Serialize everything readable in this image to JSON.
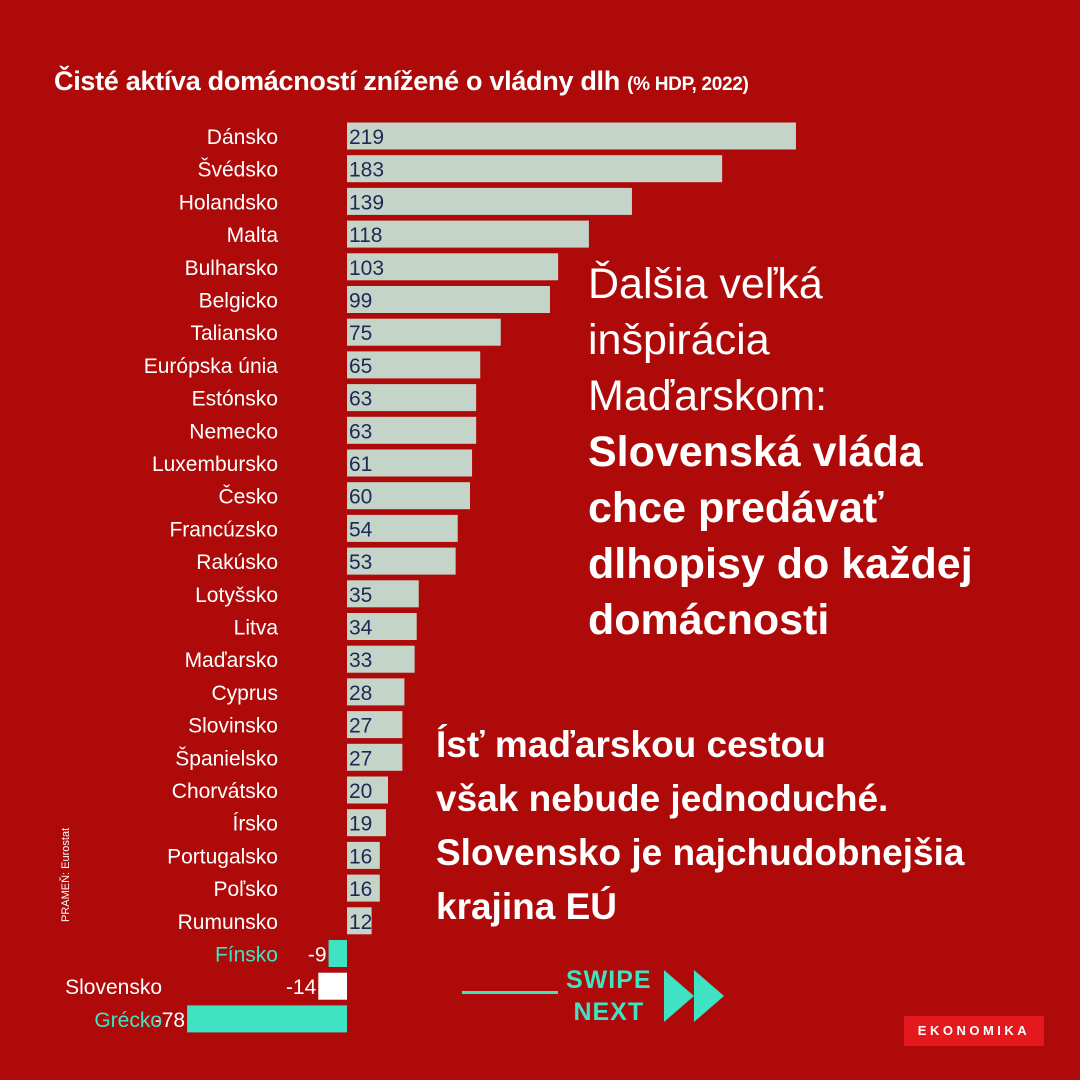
{
  "title": {
    "main": "Čisté aktíva domácností znížené o vládny dlh",
    "sub": "(% HDP, 2022)"
  },
  "source": "PRAMEŇ: Eurostat",
  "headline": {
    "light_lines": [
      "Ďalšia veľká",
      "inšpirácia",
      "Maďarskom:"
    ],
    "bold_lines": [
      "Slovenská vláda",
      "chce predávať",
      "dlhopisy do každej",
      "domácnosti"
    ]
  },
  "subhead": [
    "Ísť maďarskou cestou",
    "však nebude jednoduché.",
    "Slovensko je najchudobnejšia",
    "krajina EÚ"
  ],
  "swipe": {
    "line1": "SWIPE",
    "line2": "NEXT"
  },
  "logo": "EKONOMIKA",
  "colors": {
    "background": "#ae0a0a",
    "bar_default": "#c4d4c8",
    "bar_highlight": "#3fe3c4",
    "bar_slovakia": "#ffffff",
    "label_highlight": "#3fe3c4",
    "value_text": "#1c2a55",
    "logo_bg": "#e4191e"
  },
  "chart_data": {
    "type": "bar",
    "orientation": "horizontal",
    "categories": [
      "Dánsko",
      "Švédsko",
      "Holandsko",
      "Malta",
      "Bulharsko",
      "Belgicko",
      "Taliansko",
      "Európska únia",
      "Estónsko",
      "Nemecko",
      "Luxembursko",
      "Česko",
      "Francúzsko",
      "Rakúsko",
      "Lotyšsko",
      "Litva",
      "Maďarsko",
      "Cyprus",
      "Slovinsko",
      "Španielsko",
      "Chorvátsko",
      "Írsko",
      "Portugalsko",
      "Poľsko",
      "Rumunsko",
      "Fínsko",
      "Slovensko",
      "Grécko"
    ],
    "values": [
      219,
      183,
      139,
      118,
      103,
      99,
      75,
      65,
      63,
      63,
      61,
      60,
      54,
      53,
      35,
      34,
      33,
      28,
      27,
      27,
      20,
      19,
      16,
      16,
      12,
      -9,
      -14,
      -78
    ],
    "value_labels": [
      "219",
      "183",
      "139",
      "118",
      "103",
      "99",
      "75",
      "65",
      "63",
      "63",
      "61",
      "60",
      "54",
      "53",
      "35",
      "34",
      "33",
      "28",
      "27",
      "27",
      "20",
      "19",
      "16",
      "16",
      "12",
      "-9",
      "-14",
      "-78"
    ],
    "highlight": {
      "Fínsko": "bar_highlight",
      "Slovensko": "bar_slovakia",
      "Grécko": "bar_highlight"
    },
    "title": "Čisté aktíva domácností znížené o vládny dlh (% HDP, 2022)",
    "xlabel": "",
    "ylabel": "",
    "xlim": [
      -78,
      219
    ],
    "grid": false,
    "legend": "none"
  }
}
